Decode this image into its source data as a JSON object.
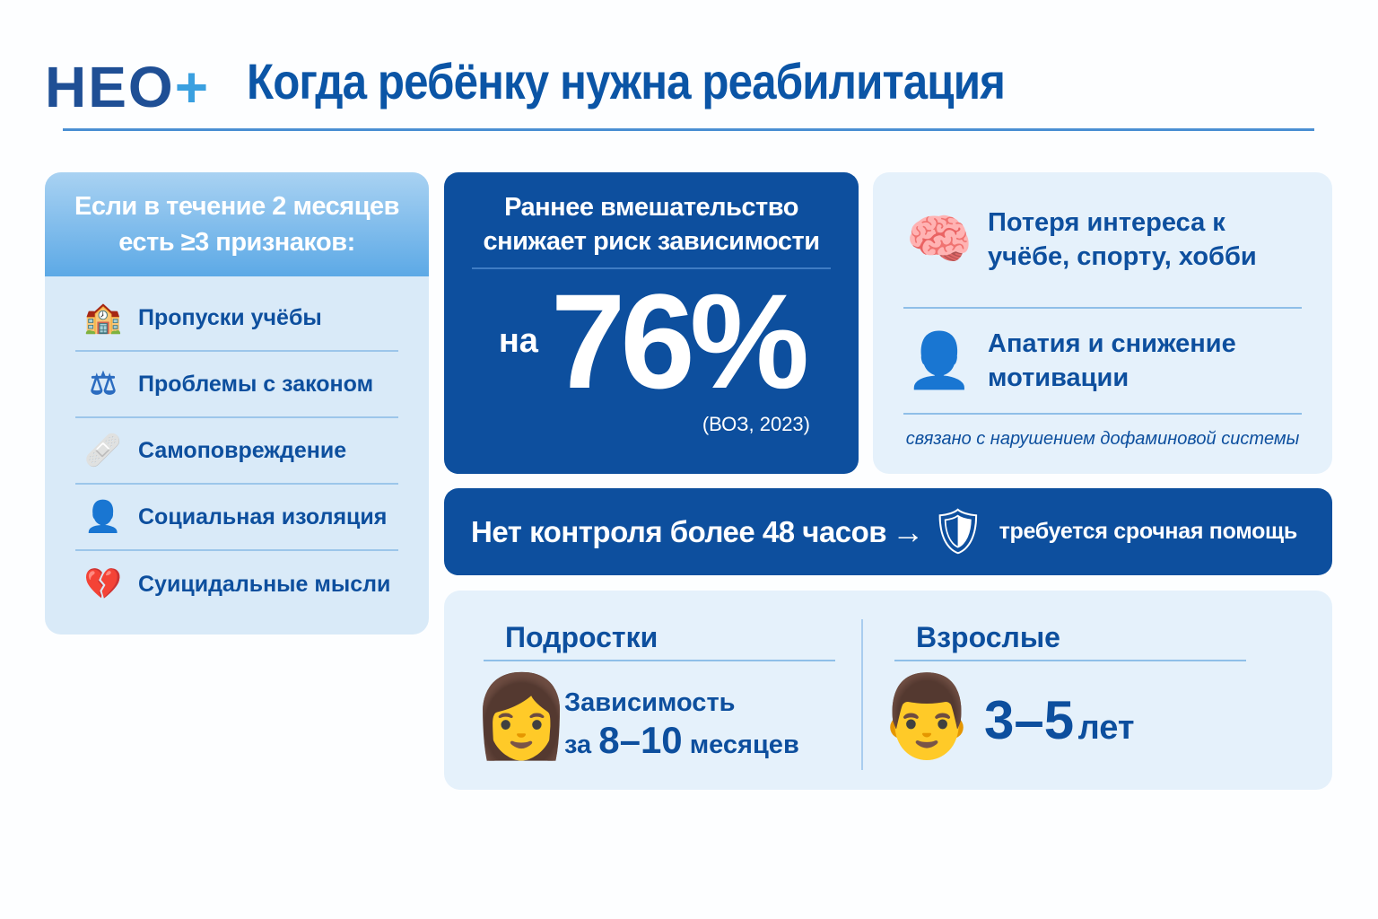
{
  "header": {
    "logo_text": "НЕО",
    "logo_plus": "+",
    "title": "Когда ребёнку нужна реабилитация"
  },
  "signs": {
    "heading": "Если в течение 2 месяцев есть ≥3 признаков:",
    "items": [
      {
        "icon": "school-icon",
        "label": "Пропуски учёбы"
      },
      {
        "icon": "gavel-icon",
        "label": "Проблемы с законом"
      },
      {
        "icon": "bandage-icon",
        "label": "Самоповреждение"
      },
      {
        "icon": "person-icon",
        "label": "Социальная изоляция"
      },
      {
        "icon": "broken-heart-icon",
        "label": "Суицидальные мысли"
      }
    ]
  },
  "stat": {
    "heading": "Раннее вмешательство снижает риск зависимости",
    "prefix": "на",
    "value": "76%",
    "source": "(ВОЗ, 2023)"
  },
  "symptoms": {
    "items": [
      {
        "icon": "brain-icon",
        "label": "Потеря интереса к учёбе, спорту, хобби"
      },
      {
        "icon": "sad-person-icon",
        "label": "Апатия и снижение мотивации"
      }
    ],
    "note": "связано с нарушением дофаминовой системы"
  },
  "alert": {
    "text": "Нет контроля более 48 часов",
    "arrow": "→",
    "icon": "shield-alert-icon",
    "action": "требуется срочная помощь"
  },
  "timeline": {
    "teens": {
      "heading": "Подростки",
      "line1": "Зависимость",
      "prefix": "за",
      "value": "8–10",
      "unit": "месяцев"
    },
    "adults": {
      "heading": "Взрослые",
      "value": "3–5",
      "unit": "лет"
    }
  },
  "colors": {
    "primary": "#0d4f9e",
    "accent": "#3aa0e0",
    "panel": "#e5f1fb"
  }
}
